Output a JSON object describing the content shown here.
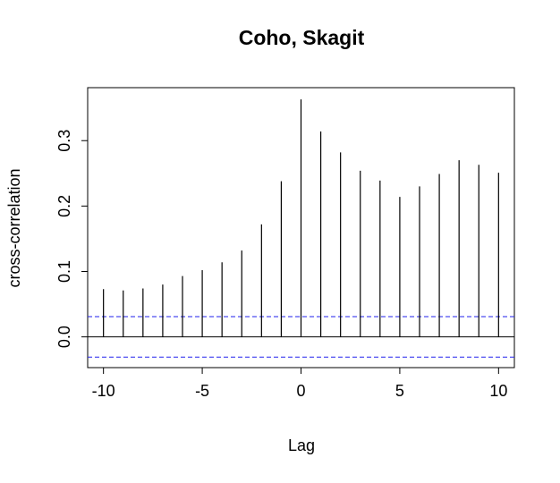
{
  "chart_data": {
    "type": "bar",
    "title": "Coho, Skagit",
    "xlabel": "Lag",
    "ylabel": "cross-correlation",
    "x": [
      -10,
      -9,
      -8,
      -7,
      -6,
      -5,
      -4,
      -3,
      -2,
      -1,
      0,
      1,
      2,
      3,
      4,
      5,
      6,
      7,
      8,
      9,
      10
    ],
    "values": [
      0.073,
      0.071,
      0.074,
      0.08,
      0.093,
      0.102,
      0.114,
      0.132,
      0.172,
      0.238,
      0.363,
      0.314,
      0.282,
      0.254,
      0.239,
      0.214,
      0.23,
      0.249,
      0.27,
      0.263,
      0.251
    ],
    "xlim": [
      -10.8,
      10.8
    ],
    "ylim": [
      -0.047,
      0.381
    ],
    "x_ticks": [
      -10,
      -5,
      0,
      5,
      10
    ],
    "x_tick_labels": [
      "-10",
      "-5",
      "0",
      "5",
      "10"
    ],
    "y_ticks": [
      0.0,
      0.1,
      0.2,
      0.3
    ],
    "y_tick_labels": [
      "0.0",
      "0.1",
      "0.2",
      "0.3"
    ],
    "zero_line": 0,
    "confidence_bounds": [
      0.031,
      -0.031
    ],
    "grid": false,
    "colors": {
      "spikes": "#000000",
      "confidence": "#2222ee",
      "axes": "#000000",
      "background": "#ffffff"
    }
  }
}
